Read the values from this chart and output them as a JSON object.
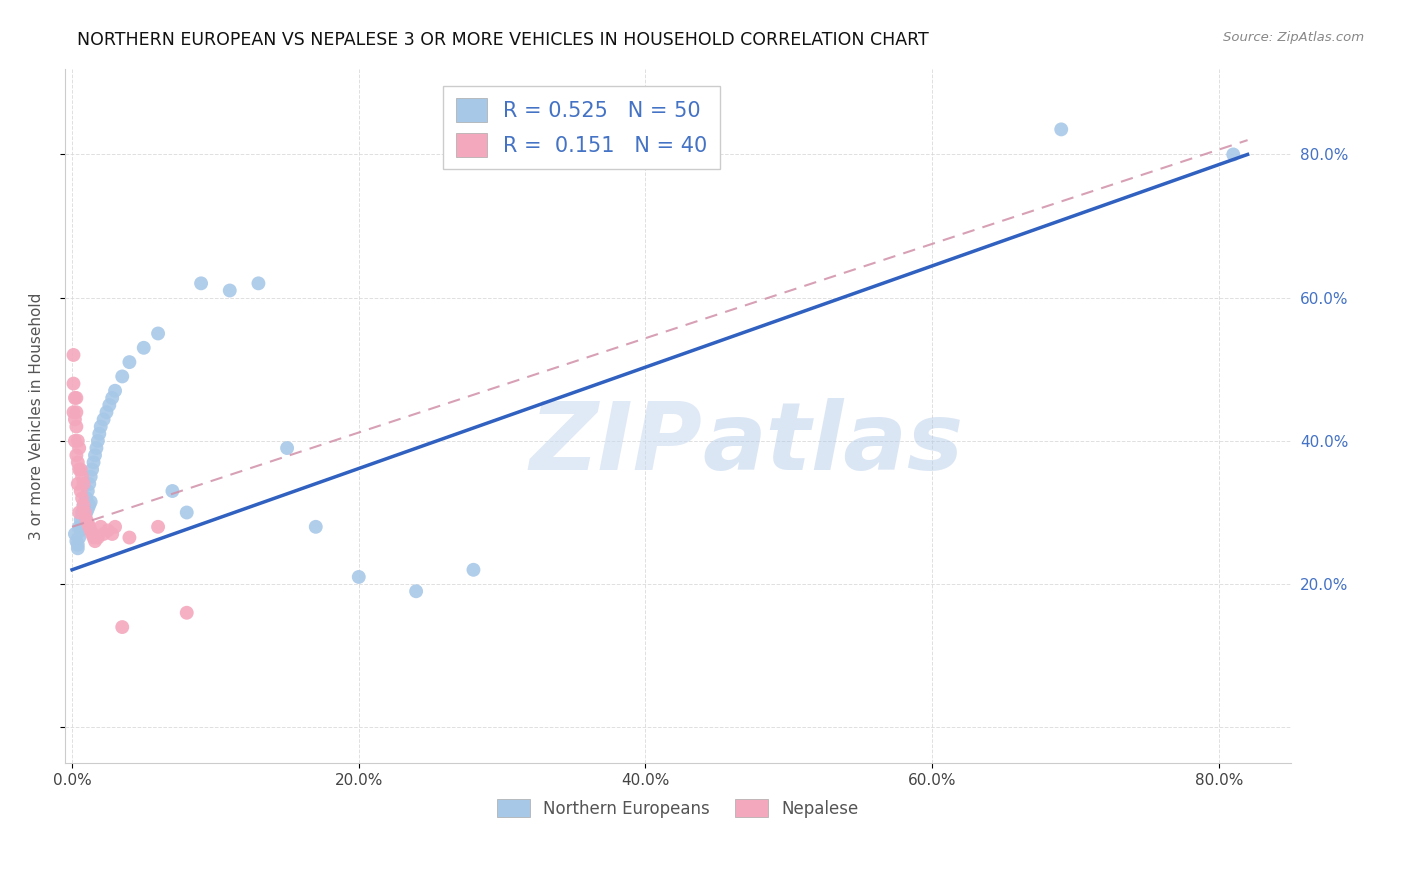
{
  "title": "NORTHERN EUROPEAN VS NEPALESE 3 OR MORE VEHICLES IN HOUSEHOLD CORRELATION CHART",
  "source": "Source: ZipAtlas.com",
  "ylabel": "3 or more Vehicles in Household",
  "xlim": [
    -0.005,
    0.85
  ],
  "ylim": [
    -0.05,
    0.92
  ],
  "xticks": [
    0.0,
    0.2,
    0.4,
    0.6,
    0.8
  ],
  "xticklabels": [
    "0.0%",
    "20.0%",
    "40.0%",
    "60.0%",
    "80.0%"
  ],
  "yticks_right": [
    0.2,
    0.4,
    0.6,
    0.8
  ],
  "yticklabels_right": [
    "20.0%",
    "40.0%",
    "60.0%",
    "80.0%"
  ],
  "blue_R": 0.525,
  "blue_N": 50,
  "pink_R": 0.151,
  "pink_N": 40,
  "blue_color": "#a8c8e8",
  "pink_color": "#f4a8be",
  "blue_line_color": "#3060c0",
  "pink_line_color": "#d090a8",
  "legend_text_color": "#4472c4",
  "watermark_zip": "ZIP",
  "watermark_atlas": "atlas",
  "blue_line_x0": 0.0,
  "blue_line_y0": 0.22,
  "blue_line_x1": 0.82,
  "blue_line_y1": 0.8,
  "pink_line_x0": 0.0,
  "pink_line_y0": 0.28,
  "pink_line_x1": 0.82,
  "pink_line_y1": 0.82,
  "blue_points_x": [
    0.002,
    0.003,
    0.004,
    0.004,
    0.005,
    0.005,
    0.006,
    0.006,
    0.007,
    0.007,
    0.008,
    0.008,
    0.009,
    0.009,
    0.01,
    0.01,
    0.011,
    0.011,
    0.012,
    0.012,
    0.013,
    0.013,
    0.014,
    0.015,
    0.016,
    0.017,
    0.018,
    0.019,
    0.02,
    0.022,
    0.024,
    0.026,
    0.028,
    0.03,
    0.035,
    0.04,
    0.05,
    0.06,
    0.07,
    0.08,
    0.09,
    0.11,
    0.13,
    0.15,
    0.17,
    0.2,
    0.24,
    0.28,
    0.69,
    0.81
  ],
  "blue_points_y": [
    0.27,
    0.26,
    0.255,
    0.25,
    0.28,
    0.265,
    0.29,
    0.275,
    0.3,
    0.285,
    0.31,
    0.29,
    0.315,
    0.295,
    0.32,
    0.3,
    0.33,
    0.305,
    0.34,
    0.31,
    0.35,
    0.315,
    0.36,
    0.37,
    0.38,
    0.39,
    0.4,
    0.41,
    0.42,
    0.43,
    0.44,
    0.45,
    0.46,
    0.47,
    0.49,
    0.51,
    0.53,
    0.55,
    0.33,
    0.3,
    0.62,
    0.61,
    0.62,
    0.39,
    0.28,
    0.21,
    0.19,
    0.22,
    0.835,
    0.8
  ],
  "pink_points_x": [
    0.001,
    0.001,
    0.001,
    0.002,
    0.002,
    0.002,
    0.003,
    0.003,
    0.003,
    0.003,
    0.004,
    0.004,
    0.004,
    0.005,
    0.005,
    0.005,
    0.006,
    0.006,
    0.007,
    0.007,
    0.008,
    0.008,
    0.009,
    0.01,
    0.011,
    0.012,
    0.013,
    0.014,
    0.015,
    0.016,
    0.018,
    0.02,
    0.022,
    0.025,
    0.028,
    0.03,
    0.035,
    0.04,
    0.06,
    0.08
  ],
  "pink_points_y": [
    0.52,
    0.48,
    0.44,
    0.46,
    0.43,
    0.4,
    0.46,
    0.44,
    0.42,
    0.38,
    0.4,
    0.37,
    0.34,
    0.39,
    0.36,
    0.3,
    0.36,
    0.33,
    0.35,
    0.32,
    0.34,
    0.31,
    0.3,
    0.29,
    0.285,
    0.28,
    0.275,
    0.27,
    0.265,
    0.26,
    0.265,
    0.28,
    0.27,
    0.275,
    0.27,
    0.28,
    0.14,
    0.265,
    0.28,
    0.16
  ]
}
